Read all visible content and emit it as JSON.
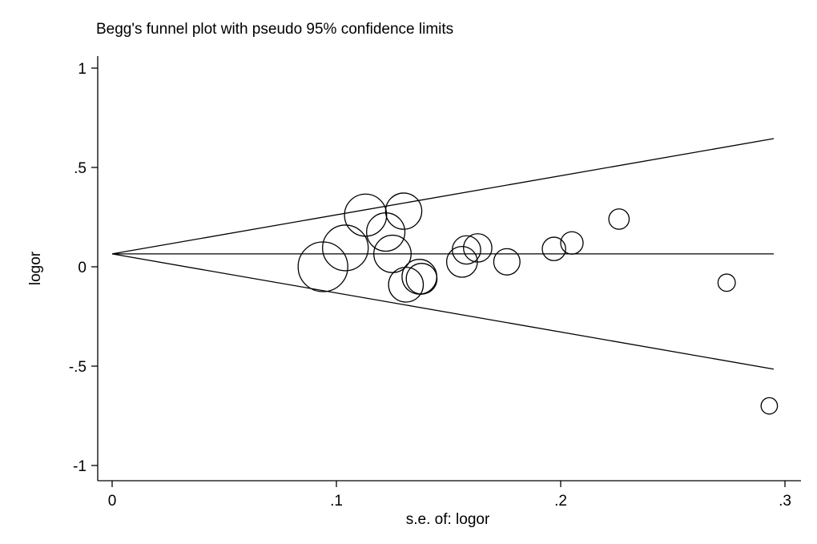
{
  "chart_data": {
    "type": "scatter",
    "title": "Begg's funnel plot with pseudo 95% confidence limits",
    "xlabel": "s.e. of: logor",
    "ylabel": "logor",
    "xlim": [
      0,
      0.3
    ],
    "ylim": [
      -1,
      1
    ],
    "x_ticks": [
      {
        "value": 0,
        "label": "0"
      },
      {
        "value": 0.1,
        "label": ".1"
      },
      {
        "value": 0.2,
        "label": ".2"
      },
      {
        "value": 0.3,
        "label": ".3"
      }
    ],
    "y_ticks": [
      {
        "value": 1,
        "label": "1"
      },
      {
        "value": 0.5,
        "label": ".5"
      },
      {
        "value": 0,
        "label": "0"
      },
      {
        "value": -0.5,
        "label": "-.5"
      },
      {
        "value": -1,
        "label": "-1"
      }
    ],
    "pooled_estimate": 0.065,
    "confidence_limits": {
      "upper": [
        [
          0,
          0.065
        ],
        [
          0.295,
          0.645
        ]
      ],
      "lower": [
        [
          0,
          0.065
        ],
        [
          0.295,
          -0.515
        ]
      ]
    },
    "points": [
      {
        "se": 0.094,
        "logor": 0.0,
        "size": 1.0
      },
      {
        "se": 0.104,
        "logor": 0.095,
        "size": 0.92
      },
      {
        "se": 0.113,
        "logor": 0.26,
        "size": 0.85
      },
      {
        "se": 0.122,
        "logor": 0.175,
        "size": 0.77
      },
      {
        "se": 0.13,
        "logor": 0.28,
        "size": 0.73
      },
      {
        "se": 0.125,
        "logor": 0.065,
        "size": 0.75
      },
      {
        "se": 0.131,
        "logor": -0.09,
        "size": 0.7
      },
      {
        "se": 0.137,
        "logor": -0.05,
        "size": 0.7
      },
      {
        "se": 0.138,
        "logor": -0.06,
        "size": 0.62
      },
      {
        "se": 0.156,
        "logor": 0.025,
        "size": 0.62
      },
      {
        "se": 0.158,
        "logor": 0.085,
        "size": 0.57
      },
      {
        "se": 0.163,
        "logor": 0.095,
        "size": 0.57
      },
      {
        "se": 0.176,
        "logor": 0.025,
        "size": 0.53
      },
      {
        "se": 0.197,
        "logor": 0.09,
        "size": 0.47
      },
      {
        "se": 0.205,
        "logor": 0.12,
        "size": 0.45
      },
      {
        "se": 0.226,
        "logor": 0.24,
        "size": 0.41
      },
      {
        "se": 0.274,
        "logor": -0.08,
        "size": 0.35
      },
      {
        "se": 0.293,
        "logor": -0.7,
        "size": 0.33
      }
    ],
    "grid": false,
    "legend": "none"
  }
}
